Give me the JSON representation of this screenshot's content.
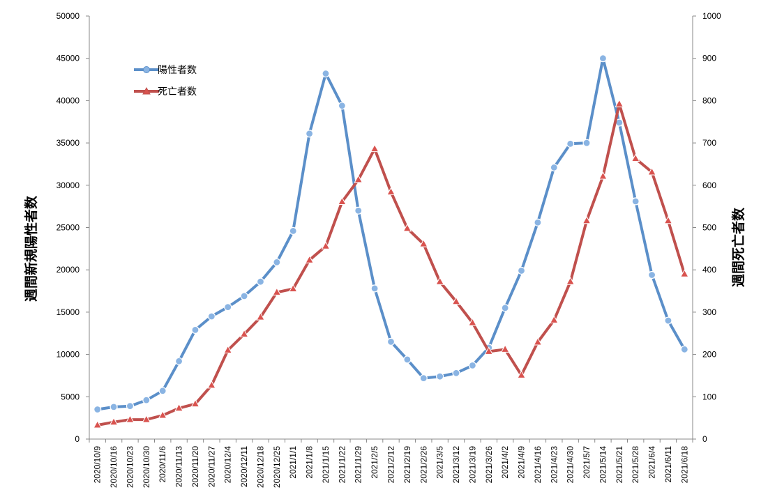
{
  "chart_data": {
    "type": "line",
    "ylabel": "週間新規陽性者数",
    "y2label": "週間死亡者数",
    "ylim": [
      0,
      50000
    ],
    "y2lim": [
      0,
      1000
    ],
    "yticks": [
      "0",
      "5000",
      "10000",
      "15000",
      "20000",
      "25000",
      "30000",
      "35000",
      "40000",
      "45000",
      "50000"
    ],
    "y2ticks": [
      "0",
      "100",
      "200",
      "300",
      "400",
      "500",
      "600",
      "700",
      "800",
      "900",
      "1000"
    ],
    "grid": false,
    "legend_position": "top-left",
    "categories": [
      "2020/10/9",
      "2020/10/16",
      "2020/10/23",
      "2020/10/30",
      "2020/11/6",
      "2020/11/13",
      "2020/11/20",
      "2020/11/27",
      "2020/12/4",
      "2020/12/11",
      "2020/12/18",
      "2020/12/25",
      "2021/1/1",
      "2021/1/8",
      "2021/1/15",
      "2021/1/22",
      "2021/1/29",
      "2021/2/5",
      "2021/2/12",
      "2021/2/19",
      "2021/2/26",
      "2021/3/5",
      "2021/3/12",
      "2021/3/19",
      "2021/3/26",
      "2021/4/2",
      "2021/4/9",
      "2021/4/16",
      "2021/4/23",
      "2021/4/30",
      "2021/5/7",
      "2021/5/14",
      "2021/5/21",
      "2021/5/28",
      "2021/6/4",
      "2021/6/11",
      "2021/6/18"
    ],
    "series": [
      {
        "name": "陽性者数",
        "axis": "left",
        "color": "#5b8fc9",
        "marker": "circle",
        "values": [
          3500,
          3800,
          3900,
          4600,
          5700,
          9200,
          12900,
          14500,
          15600,
          16900,
          18600,
          20900,
          24600,
          36100,
          43200,
          39400,
          27000,
          17800,
          11500,
          9400,
          7200,
          7400,
          7800,
          8700,
          10800,
          15500,
          19900,
          25600,
          32100,
          34900,
          35000,
          45000,
          37400,
          28100,
          19400,
          14000,
          10600
        ]
      },
      {
        "name": "死亡者数",
        "axis": "right",
        "color": "#c0504d",
        "marker": "triangle",
        "values": [
          33,
          40,
          46,
          46,
          56,
          73,
          83,
          127,
          210,
          248,
          288,
          347,
          355,
          423,
          456,
          561,
          613,
          686,
          584,
          498,
          461,
          372,
          325,
          275,
          207,
          212,
          151,
          229,
          281,
          372,
          516,
          621,
          792,
          663,
          631,
          516,
          390
        ]
      }
    ]
  }
}
